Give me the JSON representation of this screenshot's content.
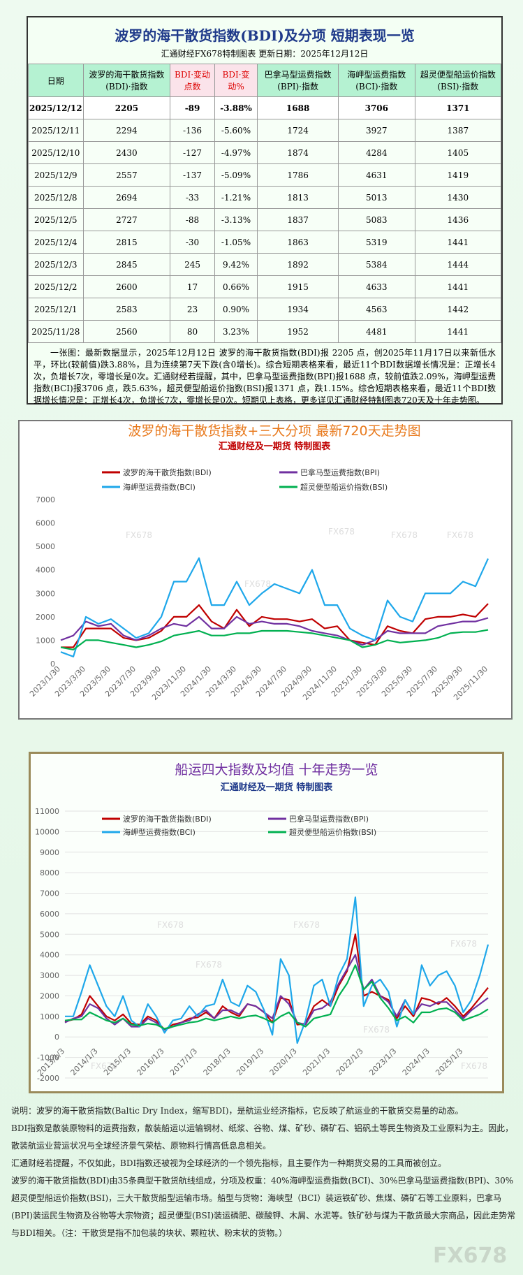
{
  "header": {
    "title": "波罗的海干散货指数(BDI)及分项  短期表现一览",
    "subtitle": "汇通财经FX678特制图表      更新日期：2025年12月12日"
  },
  "table": {
    "columns": [
      "日期",
      "波罗的海干散货指数(BDI)·指数",
      "BDI·变动点数",
      "BDI·变动%",
      "巴拿马型运费指数(BPI)·指数",
      "海岬型运费指数(BCI)·指数",
      "超灵便型船运价指数(BSI)·指数"
    ],
    "rows": [
      [
        "2025/12/12",
        "2205",
        "-89",
        "-3.88%",
        "1688",
        "3706",
        "1371"
      ],
      [
        "2025/12/11",
        "2294",
        "-136",
        "-5.60%",
        "1724",
        "3927",
        "1387"
      ],
      [
        "2025/12/10",
        "2430",
        "-127",
        "-4.97%",
        "1874",
        "4284",
        "1405"
      ],
      [
        "2025/12/9",
        "2557",
        "-137",
        "-5.09%",
        "1786",
        "4631",
        "1419"
      ],
      [
        "2025/12/8",
        "2694",
        "-33",
        "-1.21%",
        "1813",
        "5013",
        "1430"
      ],
      [
        "2025/12/5",
        "2727",
        "-88",
        "-3.13%",
        "1837",
        "5083",
        "1436"
      ],
      [
        "2025/12/4",
        "2815",
        "-30",
        "-1.05%",
        "1863",
        "5319",
        "1441"
      ],
      [
        "2025/12/3",
        "2845",
        "245",
        "9.42%",
        "1892",
        "5384",
        "1444"
      ],
      [
        "2025/12/2",
        "2600",
        "17",
        "0.66%",
        "1915",
        "4633",
        "1441"
      ],
      [
        "2025/12/1",
        "2583",
        "23",
        "0.90%",
        "1934",
        "4563",
        "1442"
      ],
      [
        "2025/11/28",
        "2560",
        "80",
        "3.23%",
        "1952",
        "4481",
        "1441"
      ]
    ]
  },
  "summary": "一张图：最新数据显示，2025年12月12日 波罗的海干散货指数(BDI)报 2205 点，创2025年11月17日以来新低水平，环比(较前值)跌3.88%，且为连续第7天下跌(含0增长)。综合短期表格来看，最近11个BDI数据增长情况是：正增长4次，负增长7次，零增长是0次。汇通财经若提醒，其中，巴拿马型运费指数(BPI)报1688 点，较前值跌2.09%，海岬型运费指数(BCI)报3706 点，跌5.63%，超灵便型船运价指数(BSI)报1371 点，跌1.15%。综合短期表格来看，最近11个BDI数据增长情况是：正增长4次，负增长7次，零增长是0次。短期见上表格，更多详见汇通财经特制图表720天及十年走势图。",
  "watermark": "FX678",
  "chart_data": [
    {
      "type": "line",
      "title": "波罗的海干散货指数+三大分项  最新720天走势图",
      "subtitle": "汇通财经及一期货  特制图表",
      "legend": "top",
      "grid": false,
      "categories": [
        "2023/1/30",
        null,
        "2023/3/30",
        null,
        "2023/5/30",
        null,
        "2023/7/30",
        null,
        "2023/9/30",
        null,
        "2023/11/30",
        null,
        "2024/1/30",
        null,
        "2024/3/30",
        null,
        "2024/5/30",
        null,
        "2024/7/30",
        null,
        "2024/9/30",
        null,
        "2024/11/30",
        null,
        "2025/1/30",
        null,
        "2025/3/30",
        null,
        "2025/5/30",
        null,
        "2025/7/30",
        null,
        "2025/9/30",
        null,
        "2025/11/30"
      ],
      "ylim": [
        0,
        7000
      ],
      "yticks": [
        0,
        1000,
        2000,
        3000,
        4000,
        5000,
        6000,
        7000
      ],
      "series": [
        {
          "name": "波罗的海干散货指数(BDI)",
          "color": "#c00000",
          "values": [
            700,
            700,
            1500,
            1500,
            1500,
            1100,
            1000,
            1100,
            1400,
            2000,
            2000,
            2500,
            1800,
            1500,
            2300,
            1600,
            2000,
            1900,
            1900,
            1800,
            1900,
            1500,
            1600,
            1000,
            900,
            800,
            1600,
            1400,
            1300,
            1900,
            2000,
            2000,
            2100,
            2000,
            2560
          ]
        },
        {
          "name": "巴拿马型运费指数(BPI)",
          "color": "#7030a0",
          "values": [
            1000,
            1200,
            1800,
            1600,
            1700,
            1200,
            1000,
            1200,
            1500,
            1700,
            1600,
            2000,
            1500,
            1500,
            2000,
            1700,
            1800,
            1700,
            1700,
            1600,
            1400,
            1300,
            1200,
            1000,
            800,
            1000,
            1400,
            1300,
            1300,
            1300,
            1600,
            1700,
            1800,
            1800,
            1952
          ]
        },
        {
          "name": "海岬型运费指数(BCI)",
          "color": "#1ea7ea",
          "values": [
            500,
            300,
            2000,
            1700,
            1900,
            1500,
            1100,
            1300,
            2000,
            3500,
            3500,
            4500,
            2500,
            2500,
            3500,
            2500,
            3000,
            3400,
            3200,
            3000,
            4000,
            2500,
            2500,
            1500,
            1200,
            1000,
            2700,
            2000,
            1800,
            3000,
            3000,
            3000,
            3500,
            3300,
            4481
          ]
        },
        {
          "name": "超灵便型船运价指数(BSI)",
          "color": "#00b050",
          "values": [
            700,
            600,
            1000,
            1000,
            900,
            800,
            700,
            800,
            950,
            1200,
            1300,
            1400,
            1200,
            1200,
            1300,
            1300,
            1400,
            1400,
            1400,
            1350,
            1300,
            1200,
            1100,
            1000,
            700,
            800,
            1000,
            900,
            950,
            1000,
            1100,
            1300,
            1350,
            1350,
            1441
          ]
        }
      ]
    },
    {
      "type": "line",
      "title": "船运四大指数及均值 十年走势一览",
      "subtitle": "汇通财经及一期货 特制图表",
      "legend": "top",
      "grid": true,
      "categories": [
        "2013/1/3",
        null,
        null,
        null,
        "2014/1/3",
        null,
        null,
        null,
        "2015/1/3",
        null,
        null,
        null,
        "2016/1/3",
        null,
        null,
        null,
        "2017/1/3",
        null,
        null,
        null,
        "2018/1/3",
        null,
        null,
        null,
        "2019/1/3",
        null,
        null,
        null,
        "2020/1/3",
        null,
        null,
        null,
        "2021/1/3",
        null,
        null,
        null,
        "2022/1/3",
        null,
        null,
        null,
        "2023/1/3",
        null,
        null,
        null,
        "2024/1/3",
        null,
        null,
        null,
        "2025/1/3",
        null,
        null,
        null
      ],
      "ylim": [
        -2000,
        11000
      ],
      "yticks": [
        -2000,
        -1000,
        0,
        1000,
        2000,
        3000,
        4000,
        5000,
        6000,
        7000,
        8000,
        9000,
        10000,
        11000
      ],
      "series": [
        {
          "name": "波罗的海干散货指数(BDI)",
          "color": "#c00000",
          "values": [
            750,
            850,
            1100,
            2000,
            1500,
            1000,
            800,
            1100,
            650,
            600,
            1000,
            800,
            350,
            600,
            700,
            900,
            950,
            1200,
            900,
            1500,
            1200,
            1000,
            1600,
            1500,
            1200,
            700,
            1900,
            1800,
            600,
            650,
            1500,
            1800,
            1500,
            2500,
            3200,
            5000,
            2000,
            2200,
            2000,
            1800,
            900,
            1500,
            1000,
            1900,
            1800,
            1600,
            1900,
            1500,
            1000,
            1400,
            1900,
            2400
          ]
        },
        {
          "name": "巴拿马型运费指数(BPI)",
          "color": "#7030a0",
          "values": [
            700,
            900,
            1000,
            1600,
            1400,
            900,
            600,
            900,
            500,
            500,
            900,
            700,
            350,
            500,
            700,
            800,
            1100,
            1300,
            900,
            1300,
            1300,
            1100,
            1600,
            1500,
            1200,
            900,
            2000,
            1600,
            700,
            600,
            1300,
            1400,
            1700,
            2600,
            3300,
            4000,
            2300,
            2800,
            2000,
            1700,
            1000,
            1800,
            1100,
            1600,
            1500,
            1700,
            1700,
            1300,
            900,
            1300,
            1600,
            1900
          ]
        },
        {
          "name": "海岬型运费指数(BCI)",
          "color": "#1ea7ea",
          "values": [
            1000,
            1000,
            2200,
            3500,
            2500,
            1500,
            1000,
            2000,
            800,
            500,
            1600,
            1000,
            200,
            800,
            900,
            1500,
            1000,
            1500,
            1600,
            2800,
            1700,
            1500,
            2500,
            2200,
            1300,
            100,
            3800,
            3000,
            -300,
            800,
            2500,
            2800,
            1500,
            3000,
            3800,
            6800,
            1500,
            2500,
            2800,
            2200,
            500,
            1800,
            1100,
            3500,
            2500,
            3000,
            3200,
            2500,
            1200,
            1800,
            3000,
            4500
          ]
        },
        {
          "name": "超灵便型船运价指数(BSI)",
          "color": "#00b050",
          "values": [
            800,
            850,
            850,
            1200,
            1000,
            800,
            700,
            900,
            600,
            550,
            650,
            600,
            400,
            500,
            600,
            700,
            750,
            900,
            800,
            900,
            1000,
            900,
            1000,
            1050,
            900,
            700,
            1000,
            1200,
            700,
            500,
            900,
            1000,
            1100,
            2000,
            2600,
            3500,
            2300,
            2700,
            1900,
            1400,
            800,
            1000,
            700,
            1200,
            1200,
            1350,
            1400,
            1200,
            800,
            950,
            1100,
            1350
          ]
        }
      ]
    }
  ],
  "notes": [
    "说明：波罗的海干散货指数(Baltic Dry Index，缩写BDI)，是航运业经济指标，它反映了航运业的干散货交易量的动态。",
    "BDI指数是散装原物料的运费指数，散装船运以运输钢材、纸浆、谷物、煤、矿砂、磷矿石、铝矾土等民生物资及工业原料为主。因此，散装航运业营运状况与全球经济景气荣枯、原物料行情高低息息相关。",
    "汇通财经若提醒，不仅如此，BDI指数还被视为全球经济的一个领先指标，且主要作为一种期货交易的工具而被创立。",
    "波罗的海干散货指数(BDI)由35条典型干散货航线组成，分项及权重：40%海岬型运费指数(BCI)、30%巴拿马型运费指数(BPI)、30%超灵便型船运价指数(BSI)，三大干散货船型运输市场。船型与货物：海峡型（BCI）装运铁矿砂、焦煤、磷矿石等工业原料，巴拿马(BPI)装运民生物资及谷物等大宗物资；超灵便型(BSI)装运磷肥、碳酸钾、木屑、水泥等。铁矿砂与煤为干散货最大宗商品，因此走势常与BDI相关。（注：干散货是指不加包装的块状、颗粒状、粉末状的货物。）"
  ]
}
